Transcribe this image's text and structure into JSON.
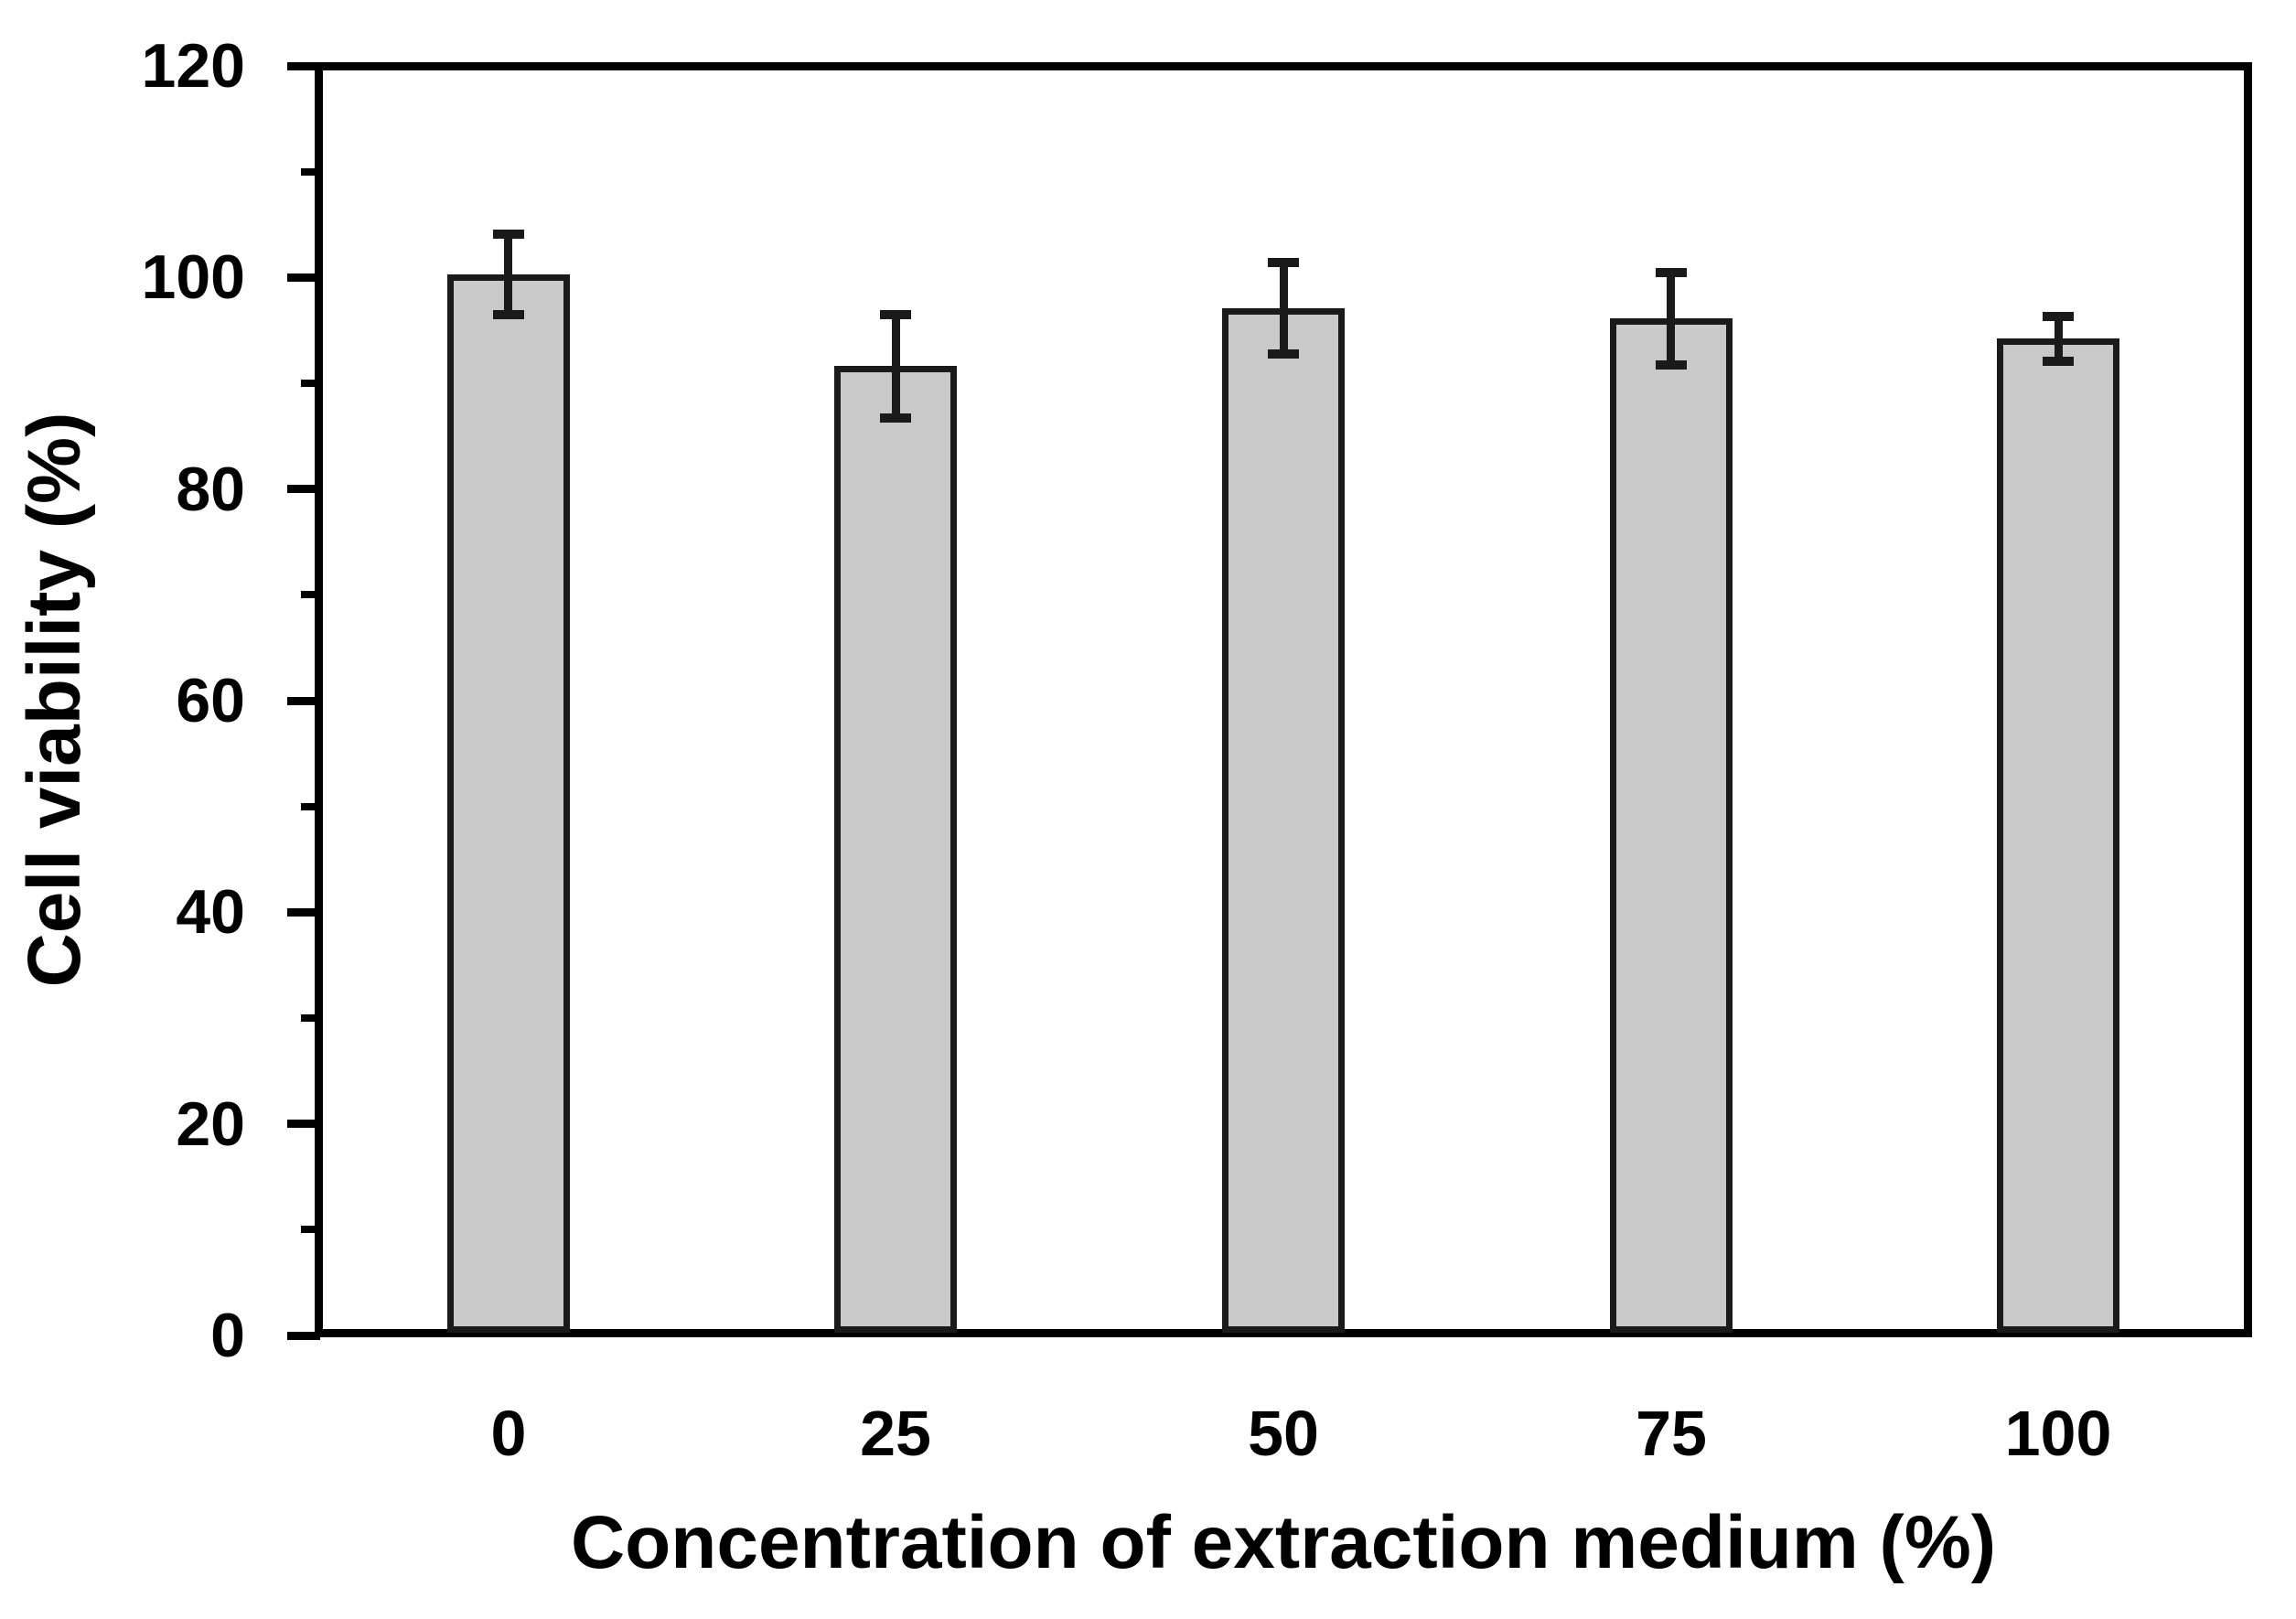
{
  "chart_data": {
    "type": "bar",
    "title": "",
    "xlabel": "Concentration of extraction medium (%)",
    "ylabel": "Cell viability (%)",
    "categories": [
      "0",
      "25",
      "50",
      "75",
      "100"
    ],
    "values": [
      100.3,
      91.6,
      97.1,
      96.1,
      94.2
    ],
    "errors": [
      3.8,
      4.9,
      4.3,
      4.4,
      2.1
    ],
    "error_bar_style": "capped, plus-minus",
    "ylim": [
      0,
      120
    ],
    "ytick_major": [
      0,
      20,
      40,
      60,
      80,
      100,
      120
    ],
    "ytick_minor": [
      10,
      30,
      50,
      70,
      90,
      110
    ],
    "grid": false,
    "legend": "none",
    "colors": {
      "bar_fill": "#c9c9c9",
      "bar_border": "#1a1a1a",
      "error_bar": "#1a1a1a",
      "axis": "#000000",
      "background": "#ffffff",
      "text": "#000000"
    }
  }
}
